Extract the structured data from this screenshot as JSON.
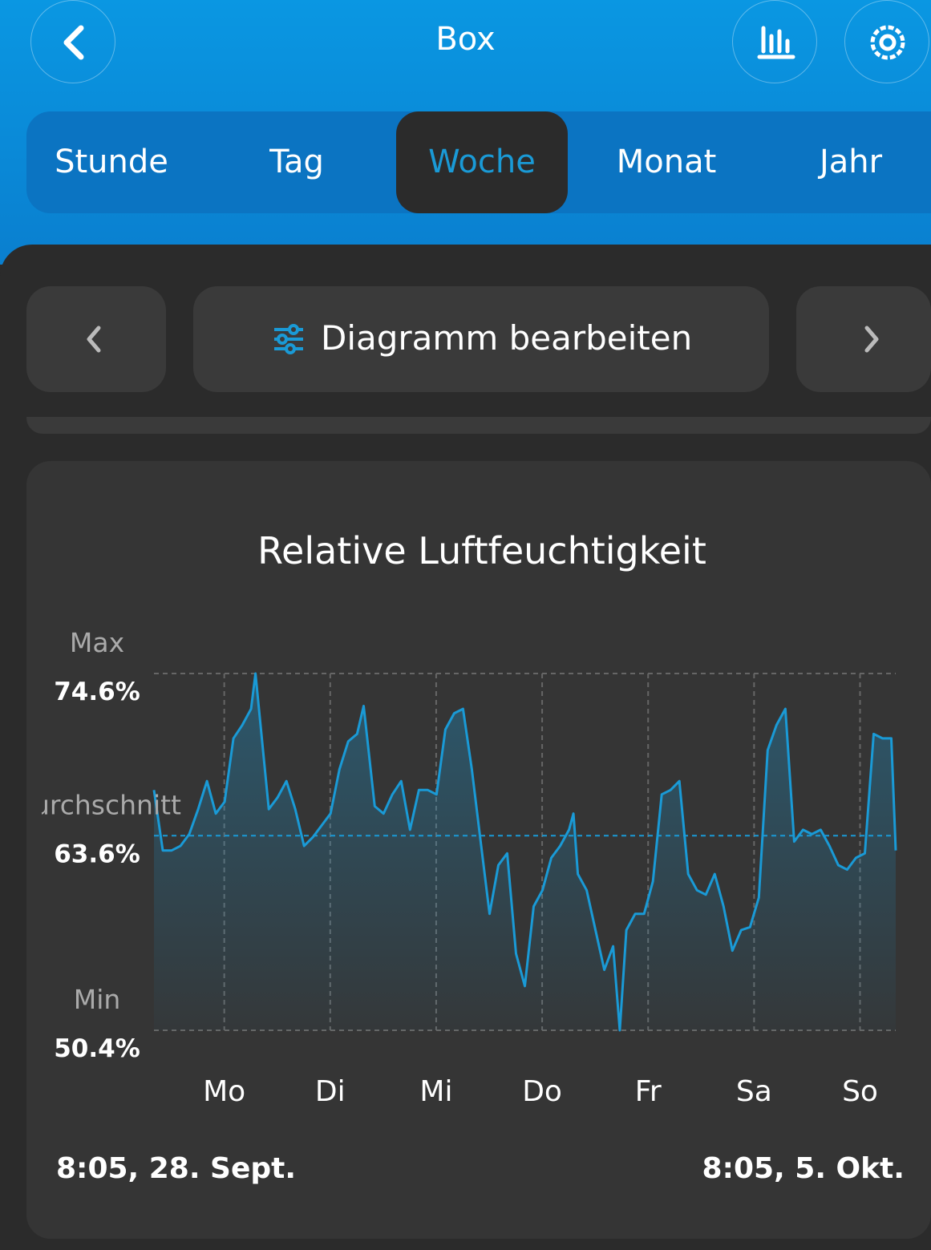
{
  "header": {
    "title": "Box"
  },
  "tabs": [
    "Stunde",
    "Tag",
    "Woche",
    "Monat",
    "Jahr"
  ],
  "active_tab": 2,
  "toolbar": {
    "edit_label": "Diagramm bearbeiten"
  },
  "chart_data": {
    "type": "line",
    "title": "Relative Luftfeuchtigkeit",
    "xlim": [
      0,
      168
    ],
    "ylim": [
      50.4,
      74.6
    ],
    "yticks": [
      {
        "value": 74.6,
        "label": "74.6%"
      },
      {
        "value": 63.6,
        "label": "63.6%"
      },
      {
        "value": 50.4,
        "label": "50.4%"
      }
    ],
    "ytick_names": [
      "Max",
      "Durchschnitt",
      "Min"
    ],
    "xticks": [
      {
        "value": 15.92,
        "label": "Mo"
      },
      {
        "value": 39.92,
        "label": "Di"
      },
      {
        "value": 63.92,
        "label": "Mi"
      },
      {
        "value": 87.92,
        "label": "Do"
      },
      {
        "value": 111.92,
        "label": "Fr"
      },
      {
        "value": 135.92,
        "label": "Sa"
      },
      {
        "value": 159.92,
        "label": "So"
      }
    ],
    "start_label": "8:05, 28. Sept.",
    "end_label": "8:05, 5. Okt.",
    "x": [
      0,
      2,
      4,
      6,
      8,
      10,
      12,
      14,
      16,
      18,
      20,
      22,
      23,
      26,
      28,
      30,
      32,
      34,
      36,
      38,
      40,
      42,
      44,
      46,
      47.5,
      50,
      52,
      54,
      56,
      58,
      60,
      62,
      64,
      66,
      68,
      70,
      72,
      74,
      76,
      78,
      80,
      82,
      84,
      86,
      88,
      90,
      92,
      94,
      95,
      96,
      98,
      100,
      102,
      104,
      105.5,
      107,
      109,
      111,
      113,
      115,
      117,
      119,
      121,
      123,
      125,
      127,
      129,
      131,
      133,
      135,
      137,
      139,
      141,
      143,
      145,
      147,
      149,
      151,
      153,
      155,
      157,
      159,
      161,
      163,
      165,
      167,
      168
    ],
    "series": [
      {
        "color": "#1a9ad6",
        "values": [
          66.7,
          62.6,
          62.6,
          62.9,
          63.7,
          65.4,
          67.3,
          65.1,
          65.9,
          70.2,
          71.1,
          72.2,
          74.6,
          65.4,
          66.2,
          67.3,
          65.4,
          62.9,
          63.5,
          64.3,
          65.1,
          68.1,
          70.0,
          70.5,
          72.4,
          65.6,
          65.1,
          66.4,
          67.3,
          64.0,
          66.7,
          66.7,
          66.4,
          70.8,
          71.9,
          72.2,
          68.1,
          63.2,
          58.3,
          61.6,
          62.4,
          55.6,
          53.4,
          58.8,
          59.9,
          62.1,
          62.9,
          64.0,
          65.1,
          61.0,
          59.9,
          57.2,
          54.5,
          56.1,
          50.4,
          57.2,
          58.3,
          58.3,
          60.5,
          66.4,
          66.7,
          67.3,
          61.0,
          59.9,
          59.6,
          61.0,
          58.8,
          55.8,
          57.2,
          57.4,
          59.4,
          69.4,
          71.1,
          72.2,
          63.2,
          64.0,
          63.7,
          64.0,
          62.9,
          61.6,
          61.3,
          62.1,
          62.4,
          70.5,
          70.2,
          70.2,
          62.6
        ]
      }
    ]
  }
}
